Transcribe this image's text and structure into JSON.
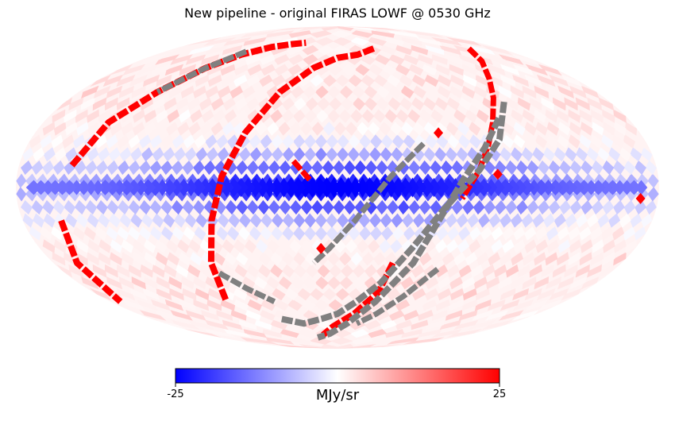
{
  "chart_data": {
    "type": "heatmap",
    "projection": "mollweide",
    "title": "New pipeline - original FIRAS LOWF @ 0530 GHz",
    "colormap": [
      "#0000ff",
      "#ffffff",
      "#ff0000"
    ],
    "masked_color": "#808080",
    "colorbar": {
      "min": -25,
      "max": 25,
      "min_label": "-25",
      "max_label": "25",
      "unit": "MJy/sr",
      "orientation": "horizontal",
      "position": "bottom"
    },
    "features": {
      "galactic_plane_peak_value": -25,
      "galactic_plane_width_deg": 12,
      "high_latitude_typical_value": 2.5,
      "saturated_stripes_value": 25,
      "masked_stripes": "gray"
    }
  }
}
